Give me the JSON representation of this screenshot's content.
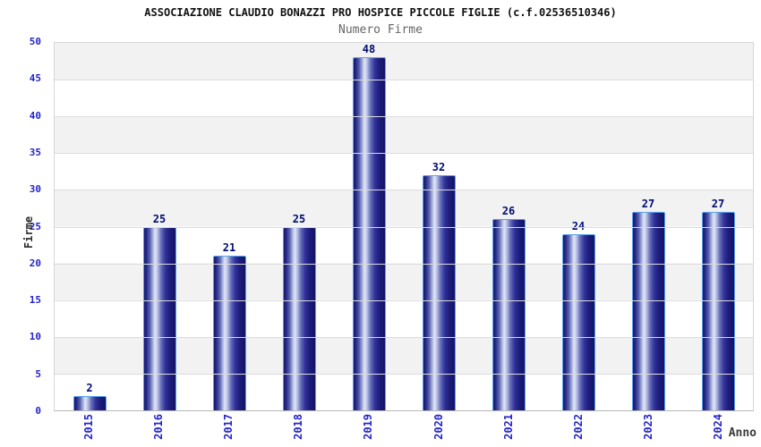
{
  "header": {
    "title": "ASSOCIAZIONE CLAUDIO BONAZZI PRO HOSPICE PICCOLE FIGLIE (c.f.02536510346)",
    "subtitle": "Numero Firme"
  },
  "chart_data": {
    "type": "bar",
    "title": "ASSOCIAZIONE CLAUDIO BONAZZI PRO HOSPICE PICCOLE FIGLIE (c.f.02536510346)",
    "subtitle": "Numero Firme",
    "categories": [
      "2015",
      "2016",
      "2017",
      "2018",
      "2019",
      "2020",
      "2021",
      "2022",
      "2023",
      "2024"
    ],
    "values": [
      2,
      25,
      21,
      25,
      48,
      32,
      26,
      24,
      27,
      27
    ],
    "xlabel": "Anno",
    "ylabel": "Firme",
    "ylim": [
      0,
      50
    ],
    "yticks": [
      0,
      5,
      10,
      15,
      20,
      25,
      30,
      35,
      40,
      45,
      50
    ],
    "grid": "horizontal gridlines every 5 units with alternating gray/white bands",
    "legend": "none"
  },
  "colors": {
    "background": "#ffffff",
    "band_gray": "#f2f2f2",
    "gridline": "#dcdcdc",
    "plot_border": "#d6d6d6",
    "tick_label_blue": "#2424cc",
    "data_label_navy": "#000d70",
    "bar_dark_navy": "#191975",
    "bar_highlight": "#e3e7f7",
    "bar_border_blue": "#58a2ec",
    "title_color": "#111111",
    "subtitle_color": "#666666",
    "axis_title_color": "#2b2b2b"
  }
}
